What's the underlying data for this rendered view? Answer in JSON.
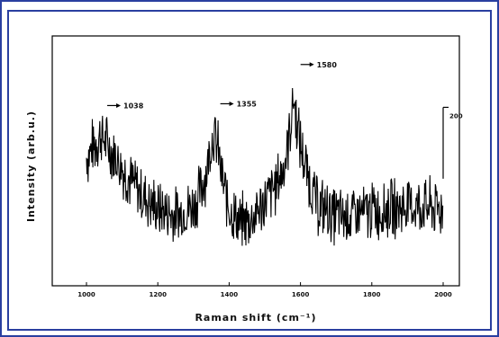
{
  "chart_data": {
    "type": "line",
    "title": "",
    "xlabel": "Raman shift (cm⁻¹)",
    "ylabel": "Intensity (arb.u.)",
    "xlim": [
      1000,
      2000
    ],
    "ylim": [
      0,
      700
    ],
    "x_ticks": [
      "1000",
      "1200",
      "1400",
      "1600",
      "1800",
      "2000"
    ],
    "grid": false,
    "scale_bar": {
      "label": "200",
      "value": 200
    },
    "peaks": [
      {
        "x": 1038,
        "y": 505,
        "label": "1038"
      },
      {
        "x": 1355,
        "y": 510,
        "label": "1355"
      },
      {
        "x": 1580,
        "y": 620,
        "label": "1580"
      }
    ],
    "series": [
      {
        "x": [
          1000,
          1020,
          1030,
          1038,
          1050,
          1060,
          1080,
          1100,
          1120,
          1150,
          1200,
          1250,
          1300,
          1320,
          1340,
          1355,
          1370,
          1380,
          1400,
          1430,
          1460,
          1500,
          1530,
          1550,
          1565,
          1575,
          1580,
          1585,
          1595,
          1610,
          1630,
          1650,
          1700,
          1750,
          1800,
          1850,
          1900,
          1950,
          2000
        ],
        "values": [
          360,
          390,
          410,
          420,
          410,
          390,
          365,
          330,
          300,
          260,
          215,
          195,
          225,
          265,
          340,
          430,
          375,
          300,
          215,
          175,
          185,
          235,
          280,
          320,
          400,
          475,
          530,
          490,
          420,
          350,
          275,
          225,
          195,
          195,
          210,
          215,
          225,
          220,
          215
        ]
      }
    ]
  }
}
